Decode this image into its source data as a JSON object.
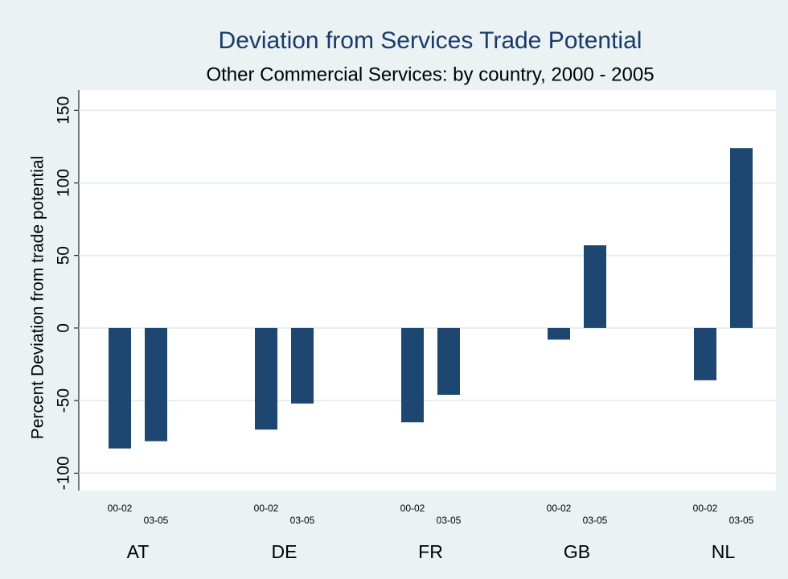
{
  "chart_data": {
    "type": "bar",
    "title": "Deviation from Services Trade Potential",
    "subtitle": "Other Commercial Services: by country, 2000 - 2005",
    "y_label": "Percent Deviation from trade potential",
    "categories": [
      "AT",
      "DE",
      "FR",
      "GB",
      "NL"
    ],
    "series": [
      {
        "name": "00-02",
        "color": "#1d4670",
        "values": [
          -83,
          -70,
          -65,
          -8,
          -36
        ]
      },
      {
        "name": "03-05",
        "color": "#1d4670",
        "values": [
          -78,
          -52,
          -46,
          57,
          124
        ]
      }
    ],
    "ylim": [
      -112,
      164
    ],
    "yticks": [
      -100,
      -50,
      0,
      50,
      100,
      150
    ],
    "grid": true
  }
}
